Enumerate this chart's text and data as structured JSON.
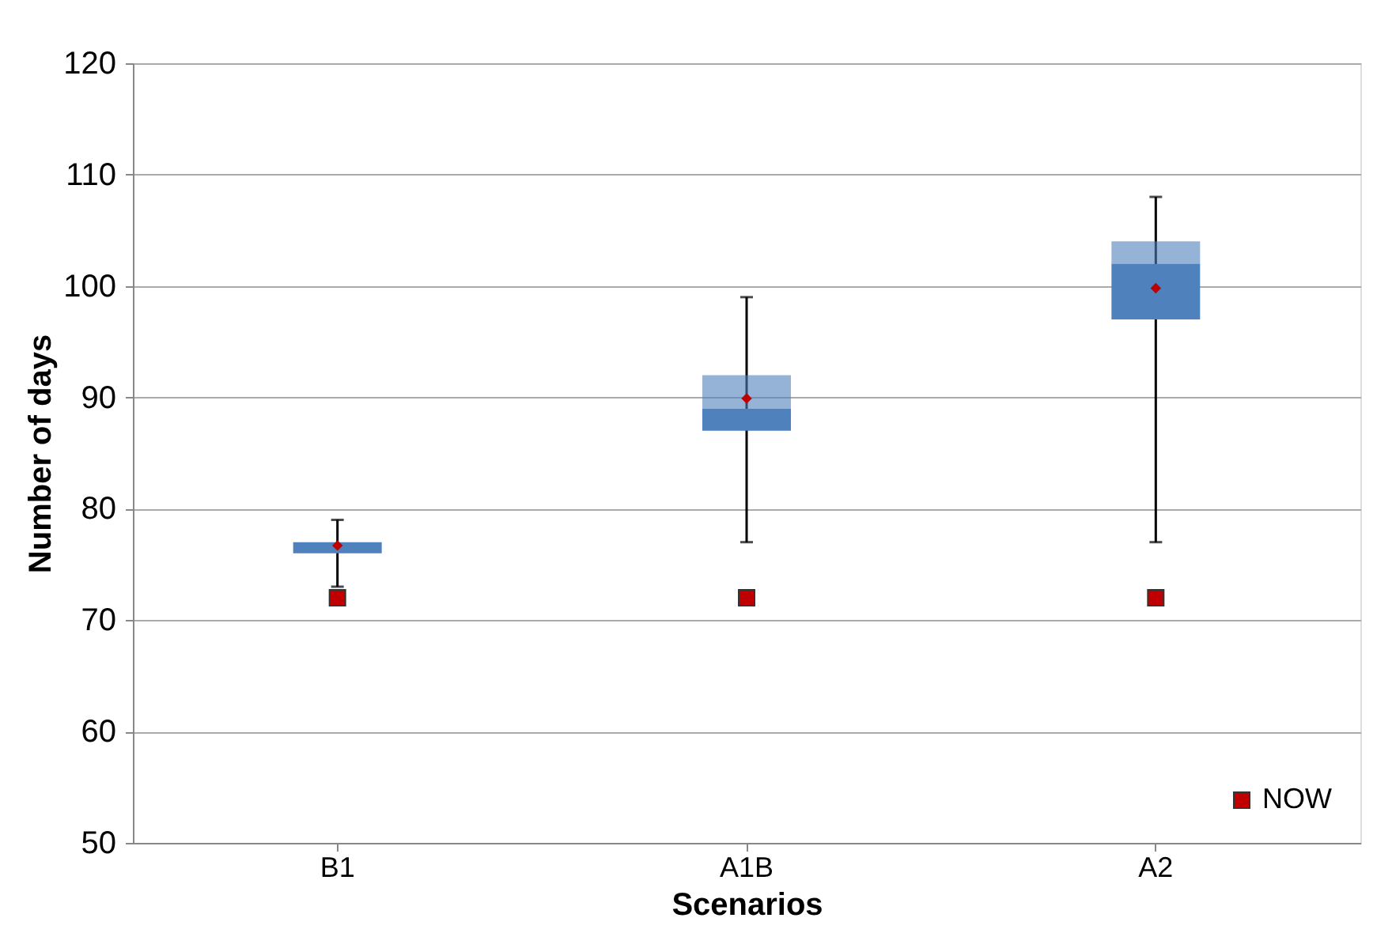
{
  "chart_data": {
    "type": "box",
    "xlabel": "Scenarios",
    "ylabel": "Number of days",
    "categories": [
      "B1",
      "A1B",
      "A2"
    ],
    "ylim": [
      50,
      120
    ],
    "yticks": [
      50,
      60,
      70,
      80,
      90,
      100,
      110,
      120
    ],
    "grid": "y",
    "legend": "bottom right",
    "series": [
      {
        "color": "#4f81bd",
        "boxes": [
          {
            "low": 73,
            "q1": 76,
            "median": 77,
            "q3": 77,
            "high": 79
          },
          {
            "low": 77,
            "q1": 87,
            "median": 89,
            "q3": 92,
            "high": 99
          },
          {
            "low": 77,
            "q1": 97,
            "median": 102,
            "q3": 104,
            "high": 108
          }
        ]
      },
      {
        "type": "scatter",
        "color": "#c00000",
        "marker": "diamond",
        "x": [
          "B1",
          "A1B",
          "A2"
        ],
        "values": [
          76.7,
          89.9,
          99.8
        ]
      },
      {
        "type": "scatter",
        "name": "NOW",
        "color": "#c00000",
        "marker": "square",
        "x": [
          "B1",
          "A1B",
          "A2"
        ],
        "values": [
          72,
          72,
          72
        ]
      }
    ]
  }
}
